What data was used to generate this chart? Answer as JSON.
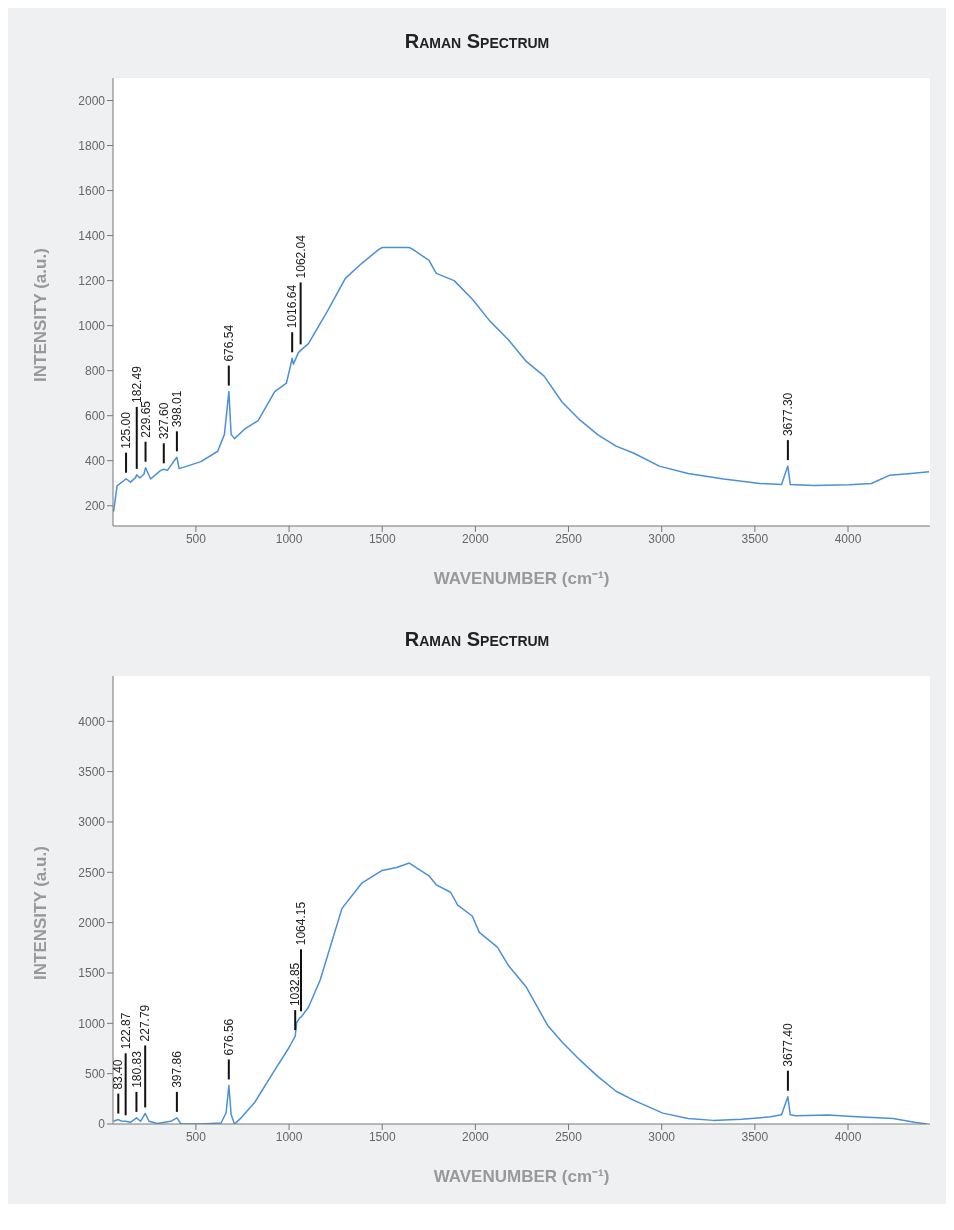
{
  "chart_data": [
    {
      "type": "line",
      "title": "Raman Spectrum",
      "xlabel": "WAVENUMBER (cm⁻¹)",
      "ylabel": "INTENSITY (a.u.)",
      "xlim": [
        55,
        4440
      ],
      "xticks": [
        500,
        1000,
        1500,
        2000,
        2500,
        3000,
        3500,
        4000
      ],
      "ylim": [
        110,
        2100
      ],
      "yticks": [
        200,
        400,
        600,
        800,
        1000,
        1200,
        1400,
        1600,
        1800,
        2000
      ],
      "series": [
        {
          "color": "#4a90d9",
          "x": [
            58,
            77,
            112,
            125,
            149,
            176,
            182,
            199,
            221,
            230,
            257,
            311,
            328,
            347,
            392,
            398,
            410,
            527,
            617,
            653,
            671,
            677,
            689,
            707,
            761,
            834,
            923,
            986,
            1010,
            1017,
            1023,
            1050,
            1062,
            1104,
            1212,
            1302,
            1392,
            1482,
            1500,
            1554,
            1645,
            1662,
            1751,
            1790,
            1886,
            1983,
            2078,
            2176,
            2273,
            2369,
            2465,
            2562,
            2658,
            2755,
            2851,
            2987,
            3141,
            3333,
            3527,
            3643,
            3677,
            3690,
            3817,
            4008,
            4125,
            4222,
            4338,
            4435
          ],
          "values": [
            174,
            288,
            311,
            320,
            305,
            325,
            337,
            323,
            340,
            369,
            319,
            357,
            362,
            357,
            410,
            415,
            365,
            396,
            442,
            517,
            660,
            707,
            517,
            498,
            540,
            578,
            707,
            745,
            830,
            855,
            829,
            880,
            890,
            920,
            1073,
            1210,
            1278,
            1339,
            1347,
            1347,
            1347,
            1340,
            1290,
            1232,
            1200,
            1118,
            1020,
            938,
            841,
            776,
            661,
            580,
            515,
            465,
            433,
            376,
            343,
            319,
            299,
            294,
            376,
            294,
            290,
            293,
            299,
            335,
            343,
            351
          ]
        }
      ],
      "annotations": [
        {
          "text": "125.00",
          "x": 125,
          "y": 320
        },
        {
          "text": "182.49",
          "x": 182.49,
          "y": 337
        },
        {
          "text": "229.65",
          "x": 229.65,
          "y": 369
        },
        {
          "text": "327.60",
          "x": 327.6,
          "y": 362
        },
        {
          "text": "398.01",
          "x": 398.01,
          "y": 415
        },
        {
          "text": "676.54",
          "x": 676.54,
          "y": 707
        },
        {
          "text": "1016.64",
          "x": 1016.64,
          "y": 855
        },
        {
          "text": "1062.04",
          "x": 1062.04,
          "y": 890
        },
        {
          "text": "3677.30",
          "x": 3677.3,
          "y": 376
        }
      ]
    },
    {
      "type": "line",
      "title": "Raman Spectrum",
      "xlabel": "WAVENUMBER (cm⁻¹)",
      "ylabel": "INTENSITY (a.u.)",
      "xlim": [
        55,
        4440
      ],
      "xticks": [
        500,
        1000,
        1500,
        2000,
        2500,
        3000,
        3500,
        4000
      ],
      "ylim": [
        0,
        4450
      ],
      "yticks": [
        0,
        500,
        1000,
        1500,
        2000,
        2500,
        3000,
        3500,
        4000
      ],
      "series": [
        {
          "color": "#4a90d9",
          "x": [
            58,
            83,
            100,
            123,
            149,
            181,
            203,
            228,
            248,
            293,
            365,
            398,
            419,
            527,
            635,
            662,
            677,
            689,
            707,
            743,
            815,
            923,
            1000,
            1033,
            1041,
            1059,
            1064,
            1104,
            1167,
            1284,
            1392,
            1500,
            1577,
            1645,
            1751,
            1790,
            1867,
            1905,
            1983,
            2021,
            2118,
            2176,
            2273,
            2388,
            2465,
            2562,
            2658,
            2755,
            2851,
            3006,
            3141,
            3276,
            3429,
            3585,
            3643,
            3677,
            3690,
            3720,
            3894,
            4048,
            4241,
            4357,
            4424
          ],
          "values": [
            27,
            44,
            30,
            27,
            17,
            61,
            27,
            105,
            27,
            5,
            27,
            61,
            3,
            0,
            10,
            112,
            383,
            94,
            0,
            61,
            213,
            535,
            760,
            873,
            1008,
            1059,
            1060,
            1160,
            1431,
            2142,
            2396,
            2519,
            2548,
            2592,
            2465,
            2376,
            2302,
            2175,
            2066,
            1903,
            1757,
            1577,
            1360,
            979,
            815,
            634,
            471,
            325,
            235,
            108,
            54,
            36,
            47,
            71,
            91,
            271,
            91,
            82,
            90,
            71,
            54,
            17,
            0
          ]
        }
      ],
      "annotations": [
        {
          "text": "83.40",
          "x": 83.4,
          "y": 44
        },
        {
          "text": "122.87",
          "x": 122.87,
          "y": 27
        },
        {
          "text": "180.83",
          "x": 180.83,
          "y": 61
        },
        {
          "text": "227.79",
          "x": 227.79,
          "y": 105
        },
        {
          "text": "397.86",
          "x": 397.86,
          "y": 61
        },
        {
          "text": "676.56",
          "x": 676.56,
          "y": 383
        },
        {
          "text": "1032.85",
          "x": 1032.85,
          "y": 873
        },
        {
          "text": "1064.15",
          "x": 1064.15,
          "y": 1060
        },
        {
          "text": "3677.40",
          "x": 3677.4,
          "y": 271
        }
      ]
    }
  ]
}
